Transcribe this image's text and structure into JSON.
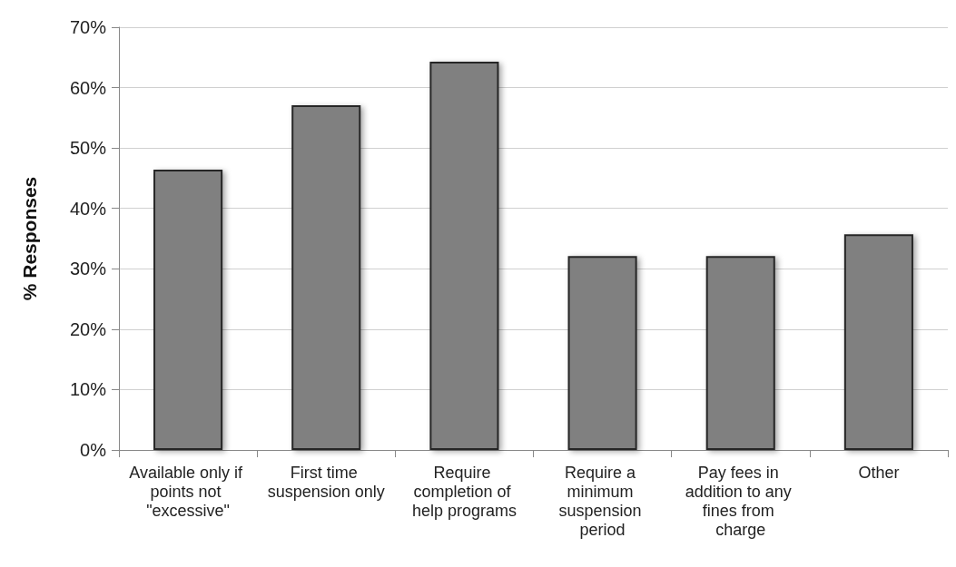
{
  "chart_data": {
    "type": "bar",
    "ylabel": "% Responses",
    "categories": [
      "Available only if points not \"excessive\"",
      "First time suspension only",
      "Require completion of help programs",
      "Require a minimum suspension period",
      "Pay fees in addition to any fines from charge",
      "Other"
    ],
    "values": [
      46.4,
      57.1,
      64.3,
      32.1,
      32.1,
      35.7
    ],
    "color": "#808080",
    "ylim": [
      0,
      70
    ],
    "yticks": [
      {
        "value": 0,
        "label": "0%"
      },
      {
        "value": 10,
        "label": "10%"
      },
      {
        "value": 20,
        "label": "20%"
      },
      {
        "value": 30,
        "label": "30%"
      },
      {
        "value": 40,
        "label": "40%"
      },
      {
        "value": 50,
        "label": "50%"
      },
      {
        "value": 60,
        "label": "60%"
      },
      {
        "value": 70,
        "label": "70%"
      }
    ],
    "grid": "y"
  }
}
